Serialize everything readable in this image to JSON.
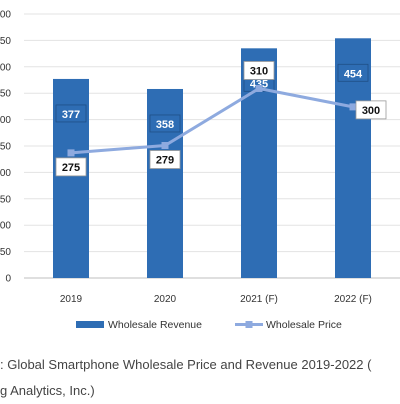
{
  "chart_data": {
    "type": "bar",
    "categories": [
      "2019",
      "2020",
      "2021 (F)",
      "2022 (F)"
    ],
    "series": [
      {
        "name": "Wholesale Revenue",
        "kind": "bar",
        "values": [
          377,
          358,
          435,
          454
        ],
        "color": "#2e6db4"
      },
      {
        "name": "Wholesale Price",
        "kind": "line",
        "values": [
          275,
          279,
          310,
          300
        ],
        "color": "#8eaadf"
      }
    ],
    "y_tick_labels": [
      "0",
      "50",
      "00",
      "50",
      "00",
      "50",
      "00",
      "50",
      "00",
      "50",
      "00"
    ],
    "ylim": [
      0,
      500
    ],
    "grid": true,
    "legend_position": "bottom",
    "notes": "Line series is plotted on a separate scale; only the visible right part of the y-axis tick labels is shown (cropped image)."
  },
  "caption": {
    "line1": ": Global Smartphone Wholesale Price and Revenue 2019-2022 (",
    "line2": "g Analytics, Inc.)"
  }
}
